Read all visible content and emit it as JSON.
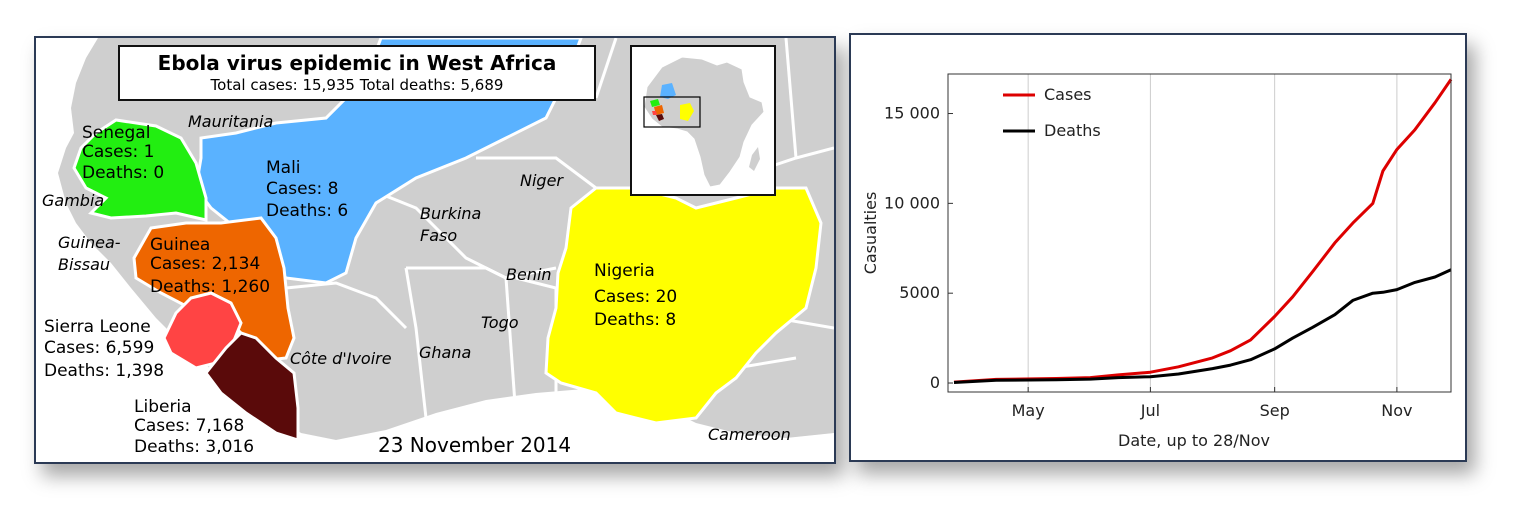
{
  "map": {
    "title": "Ebola virus epidemic in West Africa",
    "subtitle": "Total cases: 15,935 Total deaths: 5,689",
    "date": "23 November 2014",
    "colors": {
      "sea": "#ffffff",
      "land": "#cfcfcf",
      "border": "#ffffff",
      "senegal": "#22ee11",
      "mali": "#5ab2ff",
      "guinea": "#ee6600",
      "sierra_leone": "#ff4444",
      "liberia": "#5a0a0a",
      "nigeria": "#ffff00"
    },
    "affected": [
      {
        "name": "Senegal",
        "cases": "Cases: 1",
        "deaths": "Deaths: 0"
      },
      {
        "name": "Mali",
        "cases": "Cases: 8",
        "deaths": "Deaths: 6"
      },
      {
        "name": "Guinea",
        "cases": "Cases: 2,134",
        "deaths": "Deaths: 1,260"
      },
      {
        "name": "Sierra Leone",
        "cases": "Cases: 6,599",
        "deaths": "Deaths: 1,398"
      },
      {
        "name": "Liberia",
        "cases": "Cases: 7,168",
        "deaths": "Deaths: 3,016"
      },
      {
        "name": "Nigeria",
        "cases": "Cases: 20",
        "deaths": "Deaths: 8"
      }
    ],
    "other_countries": [
      "Mauritania",
      "Gambia",
      "Guinea-",
      "Bissau",
      "Niger",
      "Burkina",
      "Faso",
      "Benin",
      "Togo",
      "Ghana",
      "Côte d'Ivoire",
      "Cameroon"
    ]
  },
  "chart_data": {
    "type": "line",
    "xlabel": "Date, up to 28/Nov",
    "ylabel": "Casualties",
    "x_ticks": [
      "May",
      "Jul",
      "Sep",
      "Nov"
    ],
    "x_tick_dates": [
      "2014-05-01",
      "2014-07-01",
      "2014-09-01",
      "2014-11-01"
    ],
    "xlim": [
      "2014-03-22",
      "2014-11-28"
    ],
    "y_ticks": [
      "0",
      "5000",
      "10 000",
      "15 000"
    ],
    "y_tick_values": [
      0,
      5000,
      10000,
      15000
    ],
    "ylim": [
      -500,
      17200
    ],
    "grid": "vertical",
    "legend_position": "top-left",
    "x": [
      "2014-03-25",
      "2014-04-15",
      "2014-05-15",
      "2014-06-01",
      "2014-06-15",
      "2014-07-01",
      "2014-07-15",
      "2014-08-01",
      "2014-08-10",
      "2014-08-20",
      "2014-09-01",
      "2014-09-10",
      "2014-09-20",
      "2014-10-01",
      "2014-10-10",
      "2014-10-20",
      "2014-10-25",
      "2014-11-01",
      "2014-11-10",
      "2014-11-20",
      "2014-11-28"
    ],
    "series": [
      {
        "name": "Cases",
        "color": "#dd0000",
        "values": [
          50,
          200,
          250,
          300,
          450,
          600,
          900,
          1400,
          1800,
          2400,
          3700,
          4800,
          6200,
          7800,
          8900,
          10000,
          11800,
          13000,
          14100,
          15600,
          16900
        ]
      },
      {
        "name": "Deaths",
        "color": "#000000",
        "values": [
          30,
          150,
          180,
          220,
          300,
          350,
          500,
          800,
          1000,
          1300,
          1900,
          2500,
          3100,
          3800,
          4600,
          5000,
          5050,
          5200,
          5600,
          5900,
          6300
        ]
      }
    ]
  }
}
